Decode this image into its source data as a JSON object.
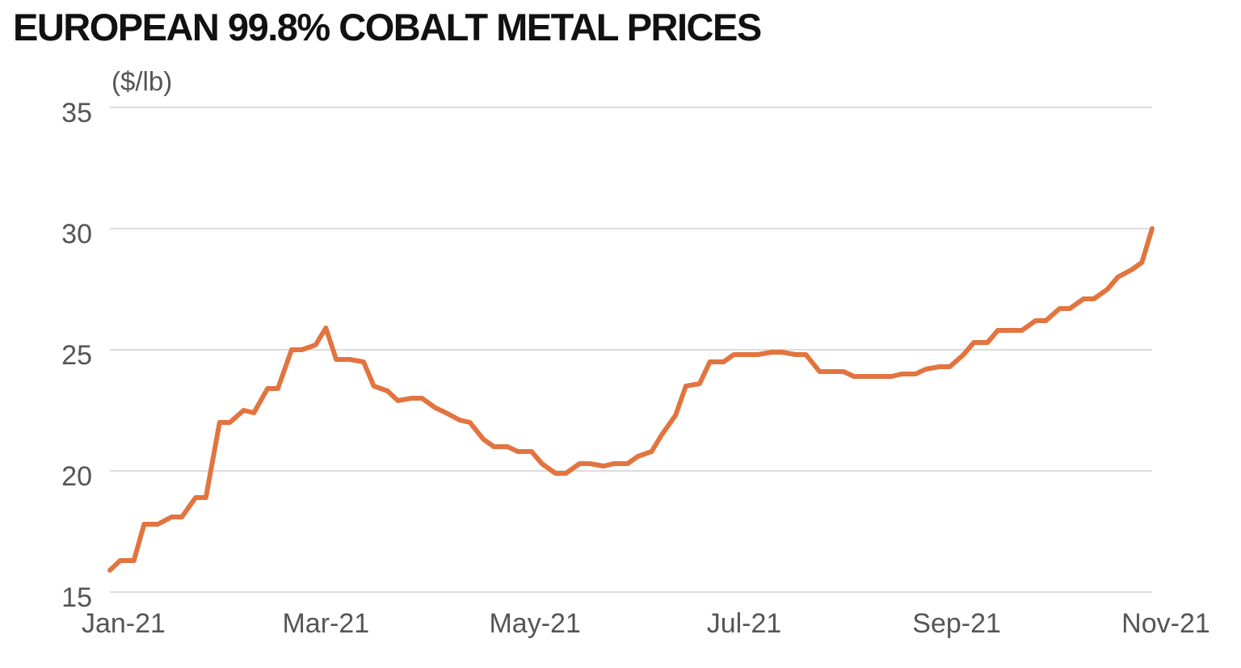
{
  "chart_data": {
    "type": "line",
    "title": "EUROPEAN 99.8% COBALT METAL PRICES",
    "unit_label": "($/lb)",
    "xlabel": "",
    "ylabel": "",
    "ylim": [
      15,
      35
    ],
    "yticks": [
      "15",
      "20",
      "25",
      "30",
      "35"
    ],
    "xlim": [
      "2021-01-01",
      "2021-11-01"
    ],
    "xticks": [
      {
        "label": "Jan-21",
        "date": "2021-01-05"
      },
      {
        "label": "Mar-21",
        "date": "2021-03-05"
      },
      {
        "label": "May-21",
        "date": "2021-05-05"
      },
      {
        "label": "Jul-21",
        "date": "2021-07-05"
      },
      {
        "label": "Sep-21",
        "date": "2021-09-05"
      },
      {
        "label": "Nov-21",
        "date": "2021-11-05"
      }
    ],
    "grid": true,
    "legend": "none",
    "color": "#e2743f",
    "series": [
      {
        "x": [
          "2021-01-01",
          "2021-01-04",
          "2021-01-08",
          "2021-01-11",
          "2021-01-15",
          "2021-01-19",
          "2021-01-22",
          "2021-01-26",
          "2021-01-29",
          "2021-02-02",
          "2021-02-05",
          "2021-02-09",
          "2021-02-12",
          "2021-02-16",
          "2021-02-19",
          "2021-02-23",
          "2021-02-26",
          "2021-03-02",
          "2021-03-05",
          "2021-03-08",
          "2021-03-12",
          "2021-03-16",
          "2021-03-19",
          "2021-03-23",
          "2021-03-26",
          "2021-03-30",
          "2021-04-02",
          "2021-04-06",
          "2021-04-09",
          "2021-04-13",
          "2021-04-16",
          "2021-04-20",
          "2021-04-23",
          "2021-04-27",
          "2021-04-30",
          "2021-05-04",
          "2021-05-07",
          "2021-05-11",
          "2021-05-14",
          "2021-05-18",
          "2021-05-21",
          "2021-05-25",
          "2021-05-28",
          "2021-06-01",
          "2021-06-04",
          "2021-06-08",
          "2021-06-11",
          "2021-06-15",
          "2021-06-18",
          "2021-06-22",
          "2021-06-25",
          "2021-06-29",
          "2021-07-02",
          "2021-07-06",
          "2021-07-09",
          "2021-07-13",
          "2021-07-16",
          "2021-07-20",
          "2021-07-23",
          "2021-07-27",
          "2021-07-30",
          "2021-08-03",
          "2021-08-06",
          "2021-08-10",
          "2021-08-13",
          "2021-08-17",
          "2021-08-20",
          "2021-08-24",
          "2021-08-27",
          "2021-08-31",
          "2021-09-03",
          "2021-09-07",
          "2021-09-10",
          "2021-09-14",
          "2021-09-17",
          "2021-09-21",
          "2021-09-24",
          "2021-09-28",
          "2021-10-01",
          "2021-10-05",
          "2021-10-08",
          "2021-10-12",
          "2021-10-15",
          "2021-10-19",
          "2021-10-22",
          "2021-10-26",
          "2021-10-29",
          "2021-11-01"
        ],
        "values": [
          15.9,
          16.3,
          16.3,
          17.8,
          17.8,
          18.1,
          18.1,
          18.9,
          18.9,
          22.0,
          22.0,
          22.5,
          22.4,
          23.4,
          23.4,
          25.0,
          25.0,
          25.2,
          25.9,
          24.6,
          24.6,
          24.5,
          23.5,
          23.3,
          22.9,
          23.0,
          23.0,
          22.6,
          22.4,
          22.1,
          22.0,
          21.3,
          21.0,
          21.0,
          20.8,
          20.8,
          20.3,
          19.9,
          19.9,
          20.3,
          20.3,
          20.2,
          20.3,
          20.3,
          20.6,
          20.8,
          21.5,
          22.3,
          23.5,
          23.6,
          24.5,
          24.5,
          24.8,
          24.8,
          24.8,
          24.9,
          24.9,
          24.8,
          24.8,
          24.1,
          24.1,
          24.1,
          23.9,
          23.9,
          23.9,
          23.9,
          24.0,
          24.0,
          24.2,
          24.3,
          24.3,
          24.8,
          25.3,
          25.3,
          25.8,
          25.8,
          25.8,
          26.2,
          26.2,
          26.7,
          26.7,
          27.1,
          27.1,
          27.5,
          28.0,
          28.3,
          28.6,
          30.0
        ]
      }
    ]
  }
}
